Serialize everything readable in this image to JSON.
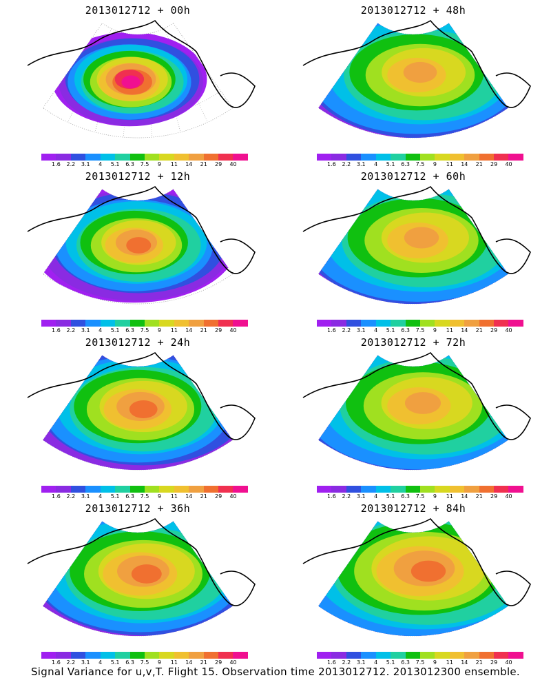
{
  "panels": [
    {
      "title": "2013012712 + 00h",
      "lead": "00h",
      "peak": 40,
      "spread": 0.35
    },
    {
      "title": "2013012712 + 48h",
      "lead": "48h",
      "peak": 14,
      "spread": 0.85
    },
    {
      "title": "2013012712 + 12h",
      "lead": "12h",
      "peak": 21,
      "spread": 0.55
    },
    {
      "title": "2013012712 + 60h",
      "lead": "60h",
      "peak": 14,
      "spread": 0.9
    },
    {
      "title": "2013012712 + 24h",
      "lead": "24h",
      "peak": 21,
      "spread": 0.7
    },
    {
      "title": "2013012712 + 72h",
      "lead": "72h",
      "peak": 14,
      "spread": 0.95
    },
    {
      "title": "2013012712 + 36h",
      "lead": "36h",
      "peak": 21,
      "spread": 0.8
    },
    {
      "title": "2013012712 + 84h",
      "lead": "84h",
      "peak": 21,
      "spread": 1.0
    }
  ],
  "colorbar": {
    "labels": [
      "1.6",
      "2.2",
      "3.1",
      "4",
      "5.1",
      "6.3",
      "7.5",
      "9",
      "11",
      "14",
      "21",
      "29",
      "40"
    ],
    "colors": [
      "#a020f0",
      "#8a2be2",
      "#3050e0",
      "#1a90ff",
      "#00c0e8",
      "#20d0a0",
      "#10c010",
      "#a0e020",
      "#d8d820",
      "#f0c030",
      "#f0a040",
      "#f07030",
      "#f03050",
      "#f01090"
    ]
  },
  "caption": "Signal Variance for u,v,T. Flight 15. Observation time 2013012712. 2013012300 ensemble."
}
